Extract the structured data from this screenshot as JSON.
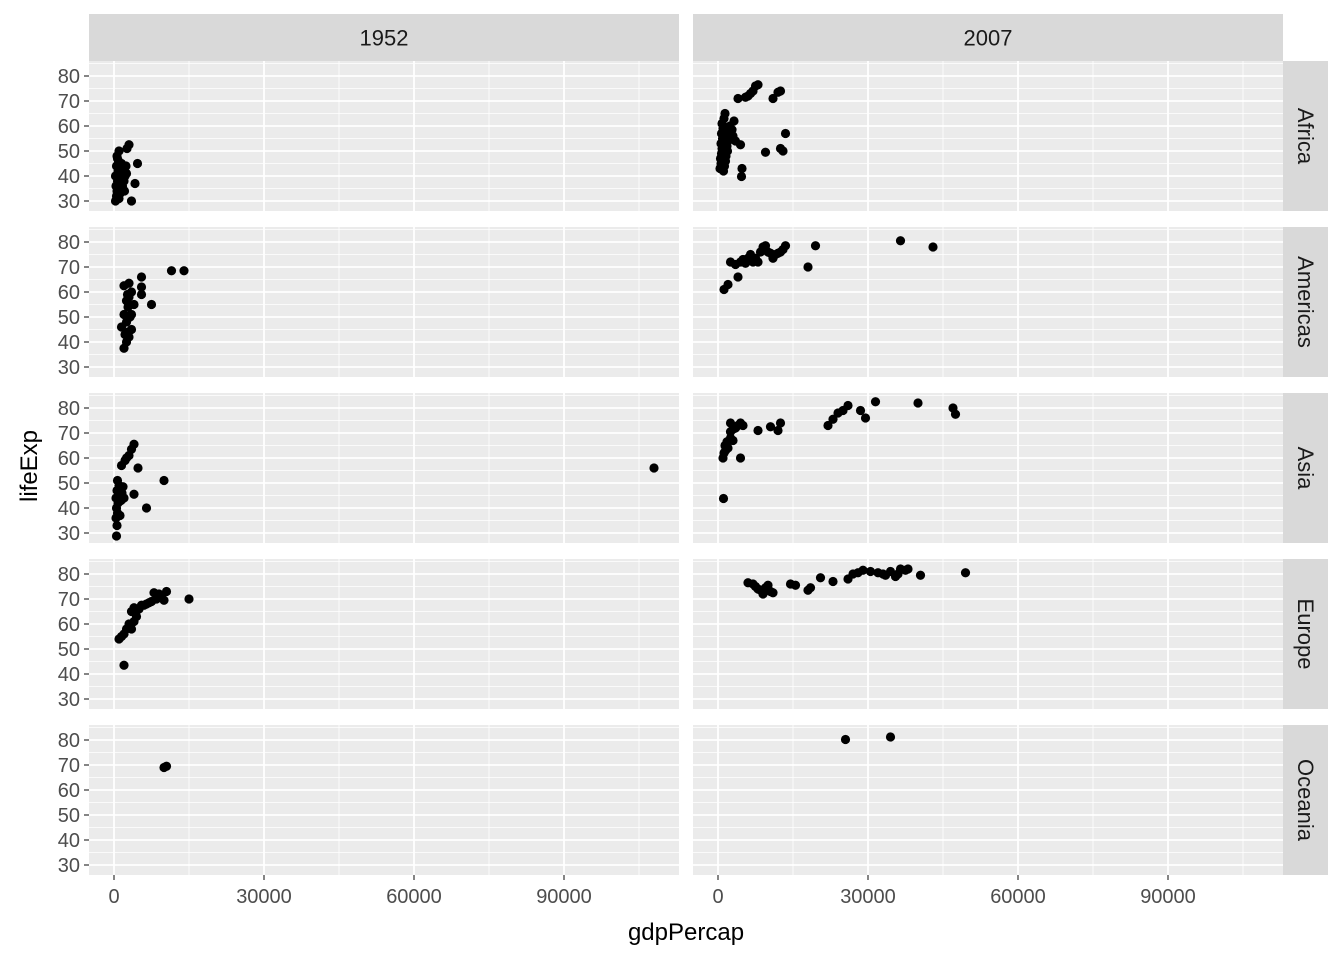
{
  "chart_data": {
    "type": "scatter",
    "facet_type": "grid",
    "xlabel": "gdpPercap",
    "ylabel": "lifeExp",
    "xlim": [
      -5000,
      113000
    ],
    "ylim": [
      26,
      86
    ],
    "xticks": [
      0,
      30000,
      60000,
      90000
    ],
    "yticks": [
      30,
      40,
      50,
      60,
      70,
      80
    ],
    "col_labels": [
      "1952",
      "2007"
    ],
    "row_labels": [
      "Africa",
      "Americas",
      "Asia",
      "Europe",
      "Oceania"
    ],
    "colors": {
      "panel_bg": "#ebebeb",
      "strip_bg": "#d9d9d9",
      "grid": "#ffffff",
      "point": "#000000"
    },
    "panels": [
      {
        "col": "1952",
        "row": "Africa",
        "points": [
          [
            300,
            30.0
          ],
          [
            500,
            32.0
          ],
          [
            600,
            34.0
          ],
          [
            400,
            36.0
          ],
          [
            700,
            38.0
          ],
          [
            300,
            40.0
          ],
          [
            800,
            42.0
          ],
          [
            500,
            44.0
          ],
          [
            900,
            46.0
          ],
          [
            600,
            48.0
          ],
          [
            1000,
            31.0
          ],
          [
            1200,
            33.0
          ],
          [
            1400,
            35.0
          ],
          [
            1100,
            37.0
          ],
          [
            1600,
            39.0
          ],
          [
            1300,
            41.0
          ],
          [
            1800,
            43.0
          ],
          [
            1500,
            45.0
          ],
          [
            2000,
            38.0
          ],
          [
            1700,
            36.0
          ],
          [
            2200,
            40.0
          ],
          [
            1900,
            42.0
          ],
          [
            2400,
            44.0
          ],
          [
            2100,
            34.0
          ],
          [
            2600,
            51.0
          ],
          [
            3000,
            52.5
          ],
          [
            3500,
            30.0
          ],
          [
            4200,
            37.0
          ],
          [
            4700,
            45.0
          ],
          [
            2500,
            41.0
          ],
          [
            1000,
            50.0
          ],
          [
            700,
            47.0
          ]
        ]
      },
      {
        "col": "2007",
        "row": "Africa",
        "points": [
          [
            400,
            43.0
          ],
          [
            600,
            45.0
          ],
          [
            500,
            47.0
          ],
          [
            700,
            49.0
          ],
          [
            800,
            51.0
          ],
          [
            600,
            53.0
          ],
          [
            900,
            55.0
          ],
          [
            700,
            57.0
          ],
          [
            1000,
            59.0
          ],
          [
            800,
            61.0
          ],
          [
            1200,
            63.0
          ],
          [
            1400,
            65.0
          ],
          [
            1100,
            42.0
          ],
          [
            1300,
            44.0
          ],
          [
            1500,
            46.0
          ],
          [
            1600,
            48.0
          ],
          [
            1800,
            52.0
          ],
          [
            2000,
            54.0
          ],
          [
            1700,
            56.0
          ],
          [
            2200,
            58.0
          ],
          [
            1900,
            50.0
          ],
          [
            2400,
            60.0
          ],
          [
            2600,
            55.0
          ],
          [
            3000,
            56.0
          ],
          [
            3500,
            54.0
          ],
          [
            4000,
            71.0
          ],
          [
            4500,
            52.5
          ],
          [
            4800,
            43.0
          ],
          [
            4700,
            39.8
          ],
          [
            5500,
            71.5
          ],
          [
            6000,
            72.0
          ],
          [
            6500,
            73.0
          ],
          [
            7000,
            74.0
          ],
          [
            7500,
            76.0
          ],
          [
            8000,
            76.5
          ],
          [
            9500,
            49.5
          ],
          [
            11000,
            71.0
          ],
          [
            12000,
            73.5
          ],
          [
            12500,
            74.0
          ],
          [
            12500,
            51.0
          ],
          [
            13000,
            50.0
          ],
          [
            13500,
            57.0
          ],
          [
            2800,
            58.5
          ],
          [
            3200,
            62.0
          ]
        ]
      },
      {
        "col": "1952",
        "row": "Americas",
        "points": [
          [
            2000,
            37.5
          ],
          [
            2500,
            40.0
          ],
          [
            3000,
            42.0
          ],
          [
            2200,
            43.0
          ],
          [
            2800,
            44.0
          ],
          [
            3500,
            45.0
          ],
          [
            1500,
            46.0
          ],
          [
            2500,
            48.0
          ],
          [
            3200,
            50.0
          ],
          [
            2000,
            51.0
          ],
          [
            3500,
            51.0
          ],
          [
            2800,
            54.0
          ],
          [
            4000,
            55.0
          ],
          [
            2500,
            56.5
          ],
          [
            3000,
            58.0
          ],
          [
            2700,
            59.0
          ],
          [
            5500,
            59.0
          ],
          [
            3500,
            60.0
          ],
          [
            5500,
            62.0
          ],
          [
            2000,
            62.5
          ],
          [
            3000,
            63.5
          ],
          [
            5500,
            66.0
          ],
          [
            7500,
            55.0
          ],
          [
            11500,
            68.5
          ],
          [
            14000,
            68.5
          ]
        ]
      },
      {
        "col": "2007",
        "row": "Americas",
        "points": [
          [
            1200,
            61.0
          ],
          [
            2000,
            63.0
          ],
          [
            4000,
            66.0
          ],
          [
            2500,
            72.0
          ],
          [
            3500,
            71.0
          ],
          [
            4500,
            72.0
          ],
          [
            5000,
            73.0
          ],
          [
            5500,
            71.5
          ],
          [
            6000,
            73.5
          ],
          [
            6500,
            75.0
          ],
          [
            7000,
            72.0
          ],
          [
            7500,
            73.5
          ],
          [
            8000,
            72.0
          ],
          [
            8500,
            76.0
          ],
          [
            9000,
            78.0
          ],
          [
            9500,
            78.5
          ],
          [
            10000,
            76.0
          ],
          [
            10500,
            75.5
          ],
          [
            11000,
            73.5
          ],
          [
            11500,
            75.0
          ],
          [
            12000,
            75.5
          ],
          [
            12500,
            76.0
          ],
          [
            13000,
            77.0
          ],
          [
            13500,
            78.5
          ],
          [
            18000,
            70.0
          ],
          [
            19500,
            78.5
          ],
          [
            36500,
            80.5
          ],
          [
            43000,
            78.0
          ]
        ]
      },
      {
        "col": "1952",
        "row": "Asia",
        "points": [
          [
            500,
            28.8
          ],
          [
            600,
            33.0
          ],
          [
            400,
            36.0
          ],
          [
            700,
            38.0
          ],
          [
            500,
            40.0
          ],
          [
            800,
            42.0
          ],
          [
            400,
            44.0
          ],
          [
            900,
            45.0
          ],
          [
            600,
            47.0
          ],
          [
            1000,
            49.0
          ],
          [
            700,
            51.0
          ],
          [
            1200,
            37.0
          ],
          [
            1400,
            43.0
          ],
          [
            1600,
            46.0
          ],
          [
            1800,
            48.5
          ],
          [
            2000,
            44.0
          ],
          [
            1500,
            57.0
          ],
          [
            2200,
            59.0
          ],
          [
            2500,
            60.0
          ],
          [
            3000,
            61.0
          ],
          [
            3500,
            63.5
          ],
          [
            4000,
            65.5
          ],
          [
            4000,
            45.5
          ],
          [
            4800,
            56.0
          ],
          [
            6500,
            40.0
          ],
          [
            10000,
            51.0
          ],
          [
            108000,
            56.0
          ]
        ]
      },
      {
        "col": "2007",
        "row": "Asia",
        "points": [
          [
            1100,
            43.8
          ],
          [
            1000,
            60.0
          ],
          [
            1200,
            62.0
          ],
          [
            1500,
            63.0
          ],
          [
            1400,
            65.0
          ],
          [
            2000,
            64.0
          ],
          [
            1800,
            66.5
          ],
          [
            2500,
            68.0
          ],
          [
            3000,
            67.0
          ],
          [
            2500,
            70.5
          ],
          [
            3000,
            71.5
          ],
          [
            3500,
            72.0
          ],
          [
            4000,
            73.0
          ],
          [
            2500,
            74.0
          ],
          [
            4500,
            74.0
          ],
          [
            5000,
            73.0
          ],
          [
            4500,
            60.0
          ],
          [
            8000,
            71.0
          ],
          [
            10500,
            72.5
          ],
          [
            12000,
            71.0
          ],
          [
            12500,
            74.0
          ],
          [
            22000,
            73.0
          ],
          [
            23000,
            75.5
          ],
          [
            24000,
            78.0
          ],
          [
            25000,
            79.0
          ],
          [
            26000,
            81.0
          ],
          [
            28500,
            79.0
          ],
          [
            29500,
            76.0
          ],
          [
            31500,
            82.5
          ],
          [
            40000,
            82.0
          ],
          [
            47000,
            80.0
          ],
          [
            47500,
            77.5
          ]
        ]
      },
      {
        "col": "1952",
        "row": "Europe",
        "points": [
          [
            2000,
            43.5
          ],
          [
            1000,
            54.0
          ],
          [
            1500,
            55.0
          ],
          [
            2000,
            56.0
          ],
          [
            2500,
            58.0
          ],
          [
            3000,
            60.0
          ],
          [
            3500,
            58.0
          ],
          [
            4000,
            61.0
          ],
          [
            4500,
            63.0
          ],
          [
            3500,
            65.0
          ],
          [
            4000,
            66.5
          ],
          [
            5000,
            66.0
          ],
          [
            5500,
            67.5
          ],
          [
            6000,
            67.5
          ],
          [
            6500,
            68.0
          ],
          [
            7000,
            68.5
          ],
          [
            7500,
            69.0
          ],
          [
            8000,
            72.5
          ],
          [
            8500,
            70.0
          ],
          [
            9000,
            72.0
          ],
          [
            9500,
            71.5
          ],
          [
            10000,
            69.5
          ],
          [
            10500,
            73.0
          ],
          [
            15000,
            70.0
          ]
        ]
      },
      {
        "col": "2007",
        "row": "Europe",
        "points": [
          [
            6000,
            76.5
          ],
          [
            7000,
            76.0
          ],
          [
            7500,
            75.0
          ],
          [
            8000,
            74.0
          ],
          [
            8500,
            73.5
          ],
          [
            9000,
            72.0
          ],
          [
            9500,
            74.5
          ],
          [
            10000,
            75.5
          ],
          [
            10500,
            73.0
          ],
          [
            11000,
            72.5
          ],
          [
            14500,
            76.0
          ],
          [
            15500,
            75.5
          ],
          [
            18000,
            73.5
          ],
          [
            18500,
            74.5
          ],
          [
            20500,
            78.5
          ],
          [
            23000,
            77.0
          ],
          [
            26000,
            78.0
          ],
          [
            27000,
            80.0
          ],
          [
            28000,
            80.5
          ],
          [
            29000,
            81.5
          ],
          [
            30500,
            81.0
          ],
          [
            32000,
            80.5
          ],
          [
            33000,
            80.0
          ],
          [
            33500,
            79.5
          ],
          [
            34500,
            81.0
          ],
          [
            35500,
            79.0
          ],
          [
            36000,
            80.0
          ],
          [
            36500,
            82.0
          ],
          [
            37500,
            81.5
          ],
          [
            38000,
            82.0
          ],
          [
            40500,
            79.5
          ],
          [
            49500,
            80.5
          ]
        ]
      },
      {
        "col": "1952",
        "row": "Oceania",
        "points": [
          [
            10000,
            69.0
          ],
          [
            10500,
            69.5
          ]
        ]
      },
      {
        "col": "2007",
        "row": "Oceania",
        "points": [
          [
            25500,
            80.2
          ],
          [
            34500,
            81.2
          ]
        ]
      }
    ]
  }
}
